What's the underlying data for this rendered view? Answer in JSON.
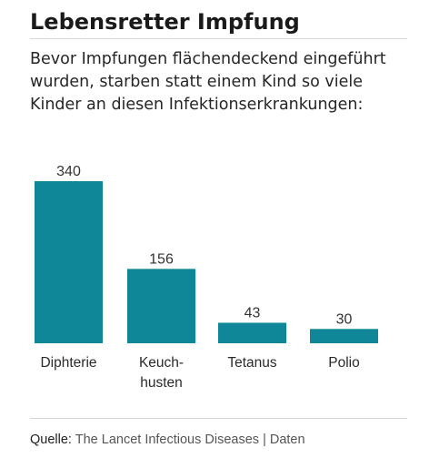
{
  "title": "Lebensretter Impfung",
  "subtitle": "Bevor Impfungen flächendeckend eingeführt wurden, starben statt einem Kind so viele Kinder an diesen Infektionserkrankungen:",
  "colors": {
    "bar": "#0f8799",
    "text": "#222222",
    "muted": "#555555",
    "rule": "#d6d6d6"
  },
  "chart_data": {
    "type": "bar",
    "categories": [
      [
        "Diphterie"
      ],
      [
        "Keuch-",
        "husten"
      ],
      [
        "Tetanus"
      ],
      [
        "Polio"
      ]
    ],
    "values": [
      340,
      156,
      43,
      30
    ],
    "data_labels": [
      "340",
      "156",
      "43",
      "30"
    ],
    "title": "",
    "xlabel": "",
    "ylabel": "",
    "ylim": [
      0,
      340
    ],
    "grid": false,
    "legend": "none"
  },
  "source": {
    "label": "Quelle:",
    "text": "The Lancet Infectious Diseases | Daten"
  }
}
